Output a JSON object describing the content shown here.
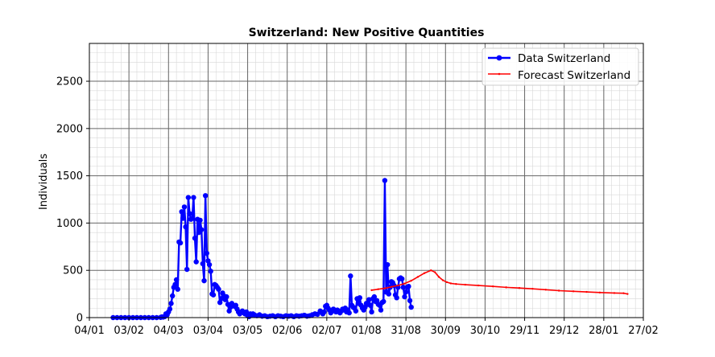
{
  "chart_data": {
    "type": "line",
    "title": "Switzerland: New Positive Quantities",
    "xlabel": "",
    "ylabel": "Individuals",
    "ylim": [
      0,
      2900
    ],
    "xlim": [
      "2020-01-04",
      "2021-02-27"
    ],
    "y_ticks": [
      0,
      500,
      1000,
      1500,
      2000,
      2500
    ],
    "x_tick_dates": [
      "2020-01-04",
      "2020-02-03",
      "2020-03-04",
      "2020-04-03",
      "2020-05-03",
      "2020-06-02",
      "2020-07-02",
      "2020-08-01",
      "2020-08-31",
      "2020-09-30",
      "2020-10-30",
      "2020-11-29",
      "2020-12-29",
      "2021-01-28",
      "2021-02-27"
    ],
    "x_tick_labels": [
      "04/01",
      "03/02",
      "04/03",
      "03/04",
      "03/05",
      "02/06",
      "02/07",
      "01/08",
      "31/08",
      "30/09",
      "30/10",
      "29/11",
      "29/12",
      "28/01",
      "27/02"
    ],
    "grid": true,
    "legend_position": "top-right",
    "colors": {
      "data": "#0000ff",
      "forecast": "#ff0000",
      "grid_major": "#666666",
      "grid_minor": "#d8d8d8"
    },
    "series": [
      {
        "name": "Data Switzerland",
        "style": "line-marker",
        "points": [
          [
            "2020-01-22",
            0
          ],
          [
            "2020-01-25",
            0
          ],
          [
            "2020-01-28",
            0
          ],
          [
            "2020-01-31",
            0
          ],
          [
            "2020-02-03",
            0
          ],
          [
            "2020-02-06",
            0
          ],
          [
            "2020-02-09",
            0
          ],
          [
            "2020-02-12",
            0
          ],
          [
            "2020-02-15",
            0
          ],
          [
            "2020-02-18",
            0
          ],
          [
            "2020-02-21",
            0
          ],
          [
            "2020-02-24",
            0
          ],
          [
            "2020-02-27",
            2
          ],
          [
            "2020-02-28",
            8
          ],
          [
            "2020-02-29",
            5
          ],
          [
            "2020-03-01",
            10
          ],
          [
            "2020-03-02",
            40
          ],
          [
            "2020-03-03",
            30
          ],
          [
            "2020-03-04",
            60
          ],
          [
            "2020-03-05",
            90
          ],
          [
            "2020-03-06",
            150
          ],
          [
            "2020-03-07",
            230
          ],
          [
            "2020-03-08",
            320
          ],
          [
            "2020-03-09",
            350
          ],
          [
            "2020-03-10",
            400
          ],
          [
            "2020-03-11",
            300
          ],
          [
            "2020-03-12",
            800
          ],
          [
            "2020-03-13",
            790
          ],
          [
            "2020-03-14",
            1120
          ],
          [
            "2020-03-15",
            1050
          ],
          [
            "2020-03-16",
            1170
          ],
          [
            "2020-03-17",
            960
          ],
          [
            "2020-03-18",
            510
          ],
          [
            "2020-03-19",
            1270
          ],
          [
            "2020-03-20",
            1100
          ],
          [
            "2020-03-21",
            1040
          ],
          [
            "2020-03-22",
            1050
          ],
          [
            "2020-03-23",
            1270
          ],
          [
            "2020-03-24",
            840
          ],
          [
            "2020-03-25",
            590
          ],
          [
            "2020-03-26",
            1040
          ],
          [
            "2020-03-27",
            900
          ],
          [
            "2020-03-28",
            1030
          ],
          [
            "2020-03-29",
            930
          ],
          [
            "2020-03-30",
            570
          ],
          [
            "2020-03-31",
            390
          ],
          [
            "2020-04-01",
            1290
          ],
          [
            "2020-04-02",
            680
          ],
          [
            "2020-04-03",
            600
          ],
          [
            "2020-04-04",
            560
          ],
          [
            "2020-04-05",
            490
          ],
          [
            "2020-04-06",
            250
          ],
          [
            "2020-04-07",
            240
          ],
          [
            "2020-04-08",
            350
          ],
          [
            "2020-04-09",
            340
          ],
          [
            "2020-04-10",
            320
          ],
          [
            "2020-04-11",
            300
          ],
          [
            "2020-04-12",
            160
          ],
          [
            "2020-04-13",
            200
          ],
          [
            "2020-04-14",
            260
          ],
          [
            "2020-04-15",
            230
          ],
          [
            "2020-04-16",
            190
          ],
          [
            "2020-04-17",
            220
          ],
          [
            "2020-04-18",
            140
          ],
          [
            "2020-04-19",
            70
          ],
          [
            "2020-04-20",
            110
          ],
          [
            "2020-04-21",
            150
          ],
          [
            "2020-04-22",
            130
          ],
          [
            "2020-04-23",
            120
          ],
          [
            "2020-04-24",
            130
          ],
          [
            "2020-04-25",
            90
          ],
          [
            "2020-04-26",
            60
          ],
          [
            "2020-04-27",
            40
          ],
          [
            "2020-04-28",
            60
          ],
          [
            "2020-04-29",
            70
          ],
          [
            "2020-04-30",
            50
          ],
          [
            "2020-05-01",
            40
          ],
          [
            "2020-05-02",
            60
          ],
          [
            "2020-05-03",
            20
          ],
          [
            "2020-05-04",
            10
          ],
          [
            "2020-05-05",
            40
          ],
          [
            "2020-05-06",
            30
          ],
          [
            "2020-05-07",
            40
          ],
          [
            "2020-05-08",
            30
          ],
          [
            "2020-05-10",
            20
          ],
          [
            "2020-05-12",
            30
          ],
          [
            "2020-05-14",
            15
          ],
          [
            "2020-05-16",
            20
          ],
          [
            "2020-05-18",
            10
          ],
          [
            "2020-05-20",
            15
          ],
          [
            "2020-05-22",
            20
          ],
          [
            "2020-05-24",
            10
          ],
          [
            "2020-05-26",
            20
          ],
          [
            "2020-05-28",
            15
          ],
          [
            "2020-05-30",
            10
          ],
          [
            "2020-06-01",
            20
          ],
          [
            "2020-06-03",
            15
          ],
          [
            "2020-06-05",
            20
          ],
          [
            "2020-06-07",
            10
          ],
          [
            "2020-06-09",
            20
          ],
          [
            "2020-06-11",
            15
          ],
          [
            "2020-06-13",
            20
          ],
          [
            "2020-06-15",
            25
          ],
          [
            "2020-06-17",
            15
          ],
          [
            "2020-06-19",
            20
          ],
          [
            "2020-06-21",
            30
          ],
          [
            "2020-06-23",
            40
          ],
          [
            "2020-06-25",
            35
          ],
          [
            "2020-06-27",
            70
          ],
          [
            "2020-06-28",
            60
          ],
          [
            "2020-06-29",
            40
          ],
          [
            "2020-06-30",
            60
          ],
          [
            "2020-07-01",
            120
          ],
          [
            "2020-07-02",
            130
          ],
          [
            "2020-07-03",
            100
          ],
          [
            "2020-07-04",
            80
          ],
          [
            "2020-07-05",
            50
          ],
          [
            "2020-07-06",
            70
          ],
          [
            "2020-07-07",
            90
          ],
          [
            "2020-07-08",
            70
          ],
          [
            "2020-07-09",
            60
          ],
          [
            "2020-07-10",
            80
          ],
          [
            "2020-07-11",
            70
          ],
          [
            "2020-07-12",
            50
          ],
          [
            "2020-07-13",
            70
          ],
          [
            "2020-07-14",
            90
          ],
          [
            "2020-07-15",
            80
          ],
          [
            "2020-07-16",
            100
          ],
          [
            "2020-07-17",
            60
          ],
          [
            "2020-07-18",
            80
          ],
          [
            "2020-07-19",
            50
          ],
          [
            "2020-07-20",
            440
          ],
          [
            "2020-07-21",
            130
          ],
          [
            "2020-07-22",
            110
          ],
          [
            "2020-07-23",
            100
          ],
          [
            "2020-07-24",
            70
          ],
          [
            "2020-07-25",
            200
          ],
          [
            "2020-07-26",
            150
          ],
          [
            "2020-07-27",
            210
          ],
          [
            "2020-07-28",
            130
          ],
          [
            "2020-07-29",
            100
          ],
          [
            "2020-07-30",
            80
          ],
          [
            "2020-07-31",
            110
          ],
          [
            "2020-08-01",
            150
          ],
          [
            "2020-08-02",
            140
          ],
          [
            "2020-08-03",
            190
          ],
          [
            "2020-08-04",
            130
          ],
          [
            "2020-08-05",
            60
          ],
          [
            "2020-08-06",
            200
          ],
          [
            "2020-08-07",
            220
          ],
          [
            "2020-08-08",
            170
          ],
          [
            "2020-08-09",
            180
          ],
          [
            "2020-08-10",
            140
          ],
          [
            "2020-08-11",
            130
          ],
          [
            "2020-08-12",
            80
          ],
          [
            "2020-08-13",
            160
          ],
          [
            "2020-08-14",
            170
          ],
          [
            "2020-08-15",
            1450
          ],
          [
            "2020-08-16",
            270
          ],
          [
            "2020-08-17",
            560
          ],
          [
            "2020-08-18",
            250
          ],
          [
            "2020-08-19",
            320
          ],
          [
            "2020-08-20",
            380
          ],
          [
            "2020-08-21",
            370
          ],
          [
            "2020-08-22",
            340
          ],
          [
            "2020-08-23",
            240
          ],
          [
            "2020-08-24",
            210
          ],
          [
            "2020-08-25",
            320
          ],
          [
            "2020-08-26",
            410
          ],
          [
            "2020-08-27",
            420
          ],
          [
            "2020-08-28",
            410
          ],
          [
            "2020-08-29",
            320
          ],
          [
            "2020-08-30",
            220
          ],
          [
            "2020-08-31",
            270
          ],
          [
            "2020-09-01",
            320
          ],
          [
            "2020-09-02",
            330
          ],
          [
            "2020-09-03",
            180
          ],
          [
            "2020-09-04",
            110
          ]
        ]
      },
      {
        "name": "Forecast Switzerland",
        "style": "line-small-marker",
        "points": [
          [
            "2020-08-05",
            290
          ],
          [
            "2020-08-10",
            300
          ],
          [
            "2020-08-15",
            310
          ],
          [
            "2020-08-20",
            325
          ],
          [
            "2020-08-25",
            340
          ],
          [
            "2020-08-30",
            360
          ],
          [
            "2020-09-04",
            390
          ],
          [
            "2020-09-09",
            430
          ],
          [
            "2020-09-14",
            470
          ],
          [
            "2020-09-19",
            500
          ],
          [
            "2020-09-22",
            480
          ],
          [
            "2020-09-25",
            430
          ],
          [
            "2020-09-28",
            395
          ],
          [
            "2020-10-01",
            375
          ],
          [
            "2020-10-04",
            362
          ],
          [
            "2020-10-08",
            355
          ],
          [
            "2020-10-15",
            348
          ],
          [
            "2020-10-25",
            340
          ],
          [
            "2020-11-05",
            330
          ],
          [
            "2020-11-15",
            320
          ],
          [
            "2020-11-25",
            313
          ],
          [
            "2020-12-05",
            305
          ],
          [
            "2020-12-15",
            295
          ],
          [
            "2020-12-25",
            285
          ],
          [
            "2021-01-05",
            278
          ],
          [
            "2021-01-15",
            272
          ],
          [
            "2021-01-25",
            265
          ],
          [
            "2021-02-05",
            260
          ],
          [
            "2021-02-12",
            258
          ],
          [
            "2021-02-15",
            250
          ]
        ]
      }
    ]
  }
}
